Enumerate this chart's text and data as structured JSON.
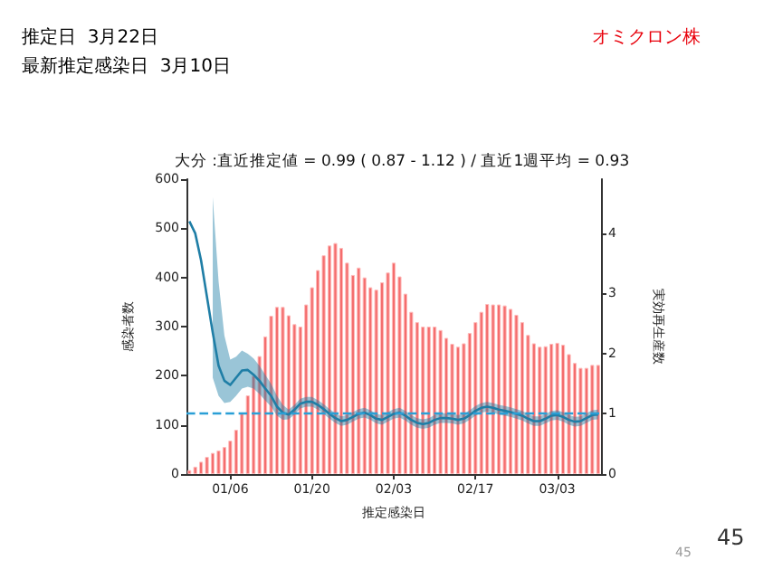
{
  "chart_data": {
    "type": "bar",
    "title": "大分 :直近推定値 = 0.99 ( 0.87 - 1.12 ) / 直近1週平均 = 0.93",
    "annotations": [
      "推定日  3月22日",
      "最新推定感染日  3月10日",
      "オミクロン株",
      "45",
      "45"
    ],
    "xlabel": "推定感染日",
    "ylabel": "感染者数",
    "y2label": "実効再生産数",
    "categories": [
      null,
      null,
      null,
      null,
      null,
      null,
      null,
      "01/06",
      null,
      null,
      null,
      null,
      null,
      null,
      null,
      null,
      null,
      null,
      null,
      null,
      null,
      "01/20",
      null,
      null,
      null,
      null,
      null,
      null,
      null,
      null,
      null,
      null,
      null,
      null,
      null,
      "02/03",
      null,
      null,
      null,
      null,
      null,
      null,
      null,
      null,
      null,
      null,
      null,
      null,
      null,
      "02/17",
      null,
      null,
      null,
      null,
      null,
      null,
      null,
      null,
      null,
      null,
      null,
      null,
      null,
      "03/03",
      null,
      null,
      null,
      null,
      null,
      null,
      null
    ],
    "series": [
      {
        "color": "#f46d6d",
        "values": [
          8,
          15,
          25,
          35,
          43,
          48,
          55,
          68,
          90,
          123,
          160,
          200,
          240,
          280,
          322,
          340,
          340,
          323,
          305,
          300,
          345,
          380,
          415,
          445,
          465,
          470,
          460,
          430,
          405,
          420,
          400,
          380,
          375,
          390,
          410,
          430,
          402,
          367,
          330,
          309,
          300,
          300,
          300,
          293,
          277,
          265,
          259,
          266,
          287,
          309,
          330,
          346,
          345,
          345,
          343,
          336,
          324,
          309,
          283,
          266,
          259,
          260,
          265,
          267,
          263,
          244,
          226,
          216,
          216,
          222,
          222
        ]
      },
      {
        "type": "line",
        "axis": "y2",
        "color": "#1f7ea6",
        "line_style": "solid",
        "values": [
          4.2,
          4.0,
          3.55,
          2.95,
          2.35,
          1.8,
          1.55,
          1.48,
          1.6,
          1.72,
          1.73,
          1.65,
          1.55,
          1.42,
          1.3,
          1.12,
          1.02,
          0.99,
          1.07,
          1.17,
          1.2,
          1.2,
          1.15,
          1.08,
          1.0,
          0.93,
          0.88,
          0.9,
          0.95,
          1.0,
          1.02,
          0.98,
          0.92,
          0.9,
          0.95,
          1.0,
          1.02,
          0.97,
          0.9,
          0.85,
          0.83,
          0.85,
          0.9,
          0.93,
          0.93,
          0.92,
          0.9,
          0.92,
          0.98,
          1.05,
          1.1,
          1.12,
          1.1,
          1.07,
          1.05,
          1.03,
          1.0,
          0.97,
          0.92,
          0.88,
          0.88,
          0.92,
          0.97,
          0.98,
          0.95,
          0.9,
          0.87,
          0.88,
          0.93,
          0.98,
          0.99
        ],
        "lower": [
          null,
          null,
          null,
          null,
          1.6,
          1.3,
          1.18,
          1.2,
          1.3,
          1.42,
          1.45,
          1.42,
          1.33,
          1.22,
          1.12,
          0.97,
          0.9,
          0.91,
          0.99,
          1.09,
          1.12,
          1.12,
          1.07,
          1.0,
          0.92,
          0.85,
          0.8,
          0.82,
          0.87,
          0.92,
          0.94,
          0.9,
          0.84,
          0.82,
          0.87,
          0.92,
          0.94,
          0.89,
          0.82,
          0.77,
          0.75,
          0.77,
          0.82,
          0.85,
          0.85,
          0.84,
          0.82,
          0.84,
          0.9,
          0.97,
          1.02,
          1.04,
          1.02,
          0.99,
          0.97,
          0.95,
          0.92,
          0.89,
          0.84,
          0.8,
          0.8,
          0.84,
          0.89,
          0.9,
          0.87,
          0.82,
          0.79,
          0.8,
          0.85,
          0.9,
          0.91
        ],
        "upper": [
          null,
          null,
          null,
          null,
          4.6,
          3.2,
          2.3,
          1.9,
          1.95,
          2.05,
          2.0,
          1.92,
          1.8,
          1.65,
          1.5,
          1.3,
          1.15,
          1.07,
          1.15,
          1.25,
          1.28,
          1.28,
          1.23,
          1.16,
          1.08,
          1.01,
          0.96,
          0.98,
          1.03,
          1.08,
          1.1,
          1.06,
          1.0,
          0.98,
          1.03,
          1.08,
          1.1,
          1.05,
          0.98,
          0.93,
          0.91,
          0.93,
          0.98,
          1.01,
          1.01,
          1.0,
          0.98,
          1.0,
          1.06,
          1.13,
          1.18,
          1.2,
          1.18,
          1.15,
          1.13,
          1.11,
          1.08,
          1.05,
          1.0,
          0.96,
          0.96,
          1.0,
          1.05,
          1.06,
          1.03,
          0.98,
          0.95,
          0.96,
          1.01,
          1.06,
          1.07
        ]
      }
    ],
    "ylim": [
      0,
      600
    ],
    "yticks": [
      0,
      100,
      200,
      300,
      400,
      500,
      600
    ],
    "y2lim": [
      0,
      4.9
    ],
    "y2ticks": [
      0,
      1,
      2,
      3,
      4
    ],
    "ref_lines": [
      {
        "axis": "y2",
        "value": 1,
        "color": "#2a9fd6",
        "line_style": "dashed"
      }
    ],
    "grid": false
  }
}
